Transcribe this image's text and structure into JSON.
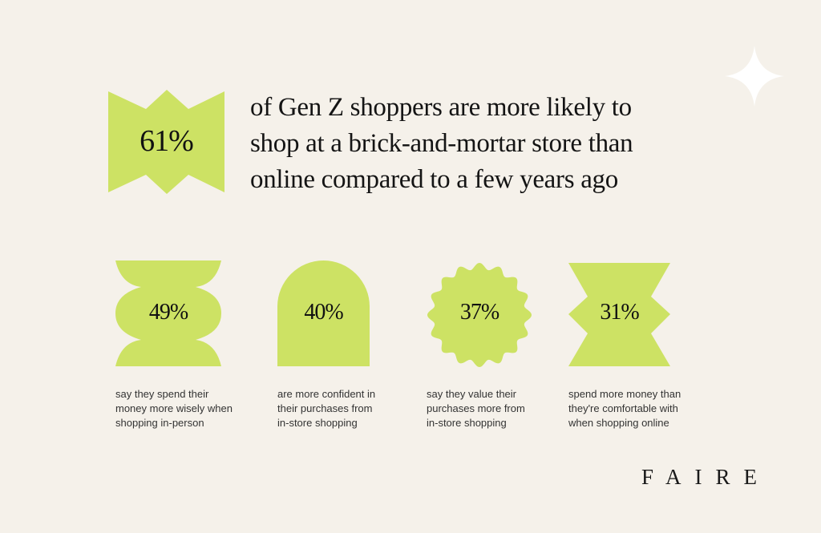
{
  "colors": {
    "background": "#f5f1ea",
    "shape_fill": "#cde264",
    "star": "#ffffff",
    "text": "#141414"
  },
  "headline_stat": {
    "value": "61%",
    "lines": [
      "of Gen Z shoppers are more likely to",
      "shop at a brick-and-mortar store than",
      "online compared to a few years ago"
    ]
  },
  "stats": [
    {
      "value": "49%",
      "shape": "scalloped-stack",
      "caption": [
        "say they spend their",
        "money more wisely when",
        "shopping in-person"
      ]
    },
    {
      "value": "40%",
      "shape": "arch",
      "caption": [
        "are more confident in",
        "their purchases from",
        "in-store shopping"
      ]
    },
    {
      "value": "37%",
      "shape": "wavy-badge",
      "caption": [
        "say they value their",
        "purchases more from",
        "in-store shopping"
      ]
    },
    {
      "value": "31%",
      "shape": "notched-banner",
      "caption": [
        "spend more money than",
        "they're comfortable with",
        "when shopping online"
      ]
    }
  ],
  "decoration": {
    "icon": "sparkle-star-icon"
  },
  "brand": {
    "logo": "FAIRE"
  }
}
